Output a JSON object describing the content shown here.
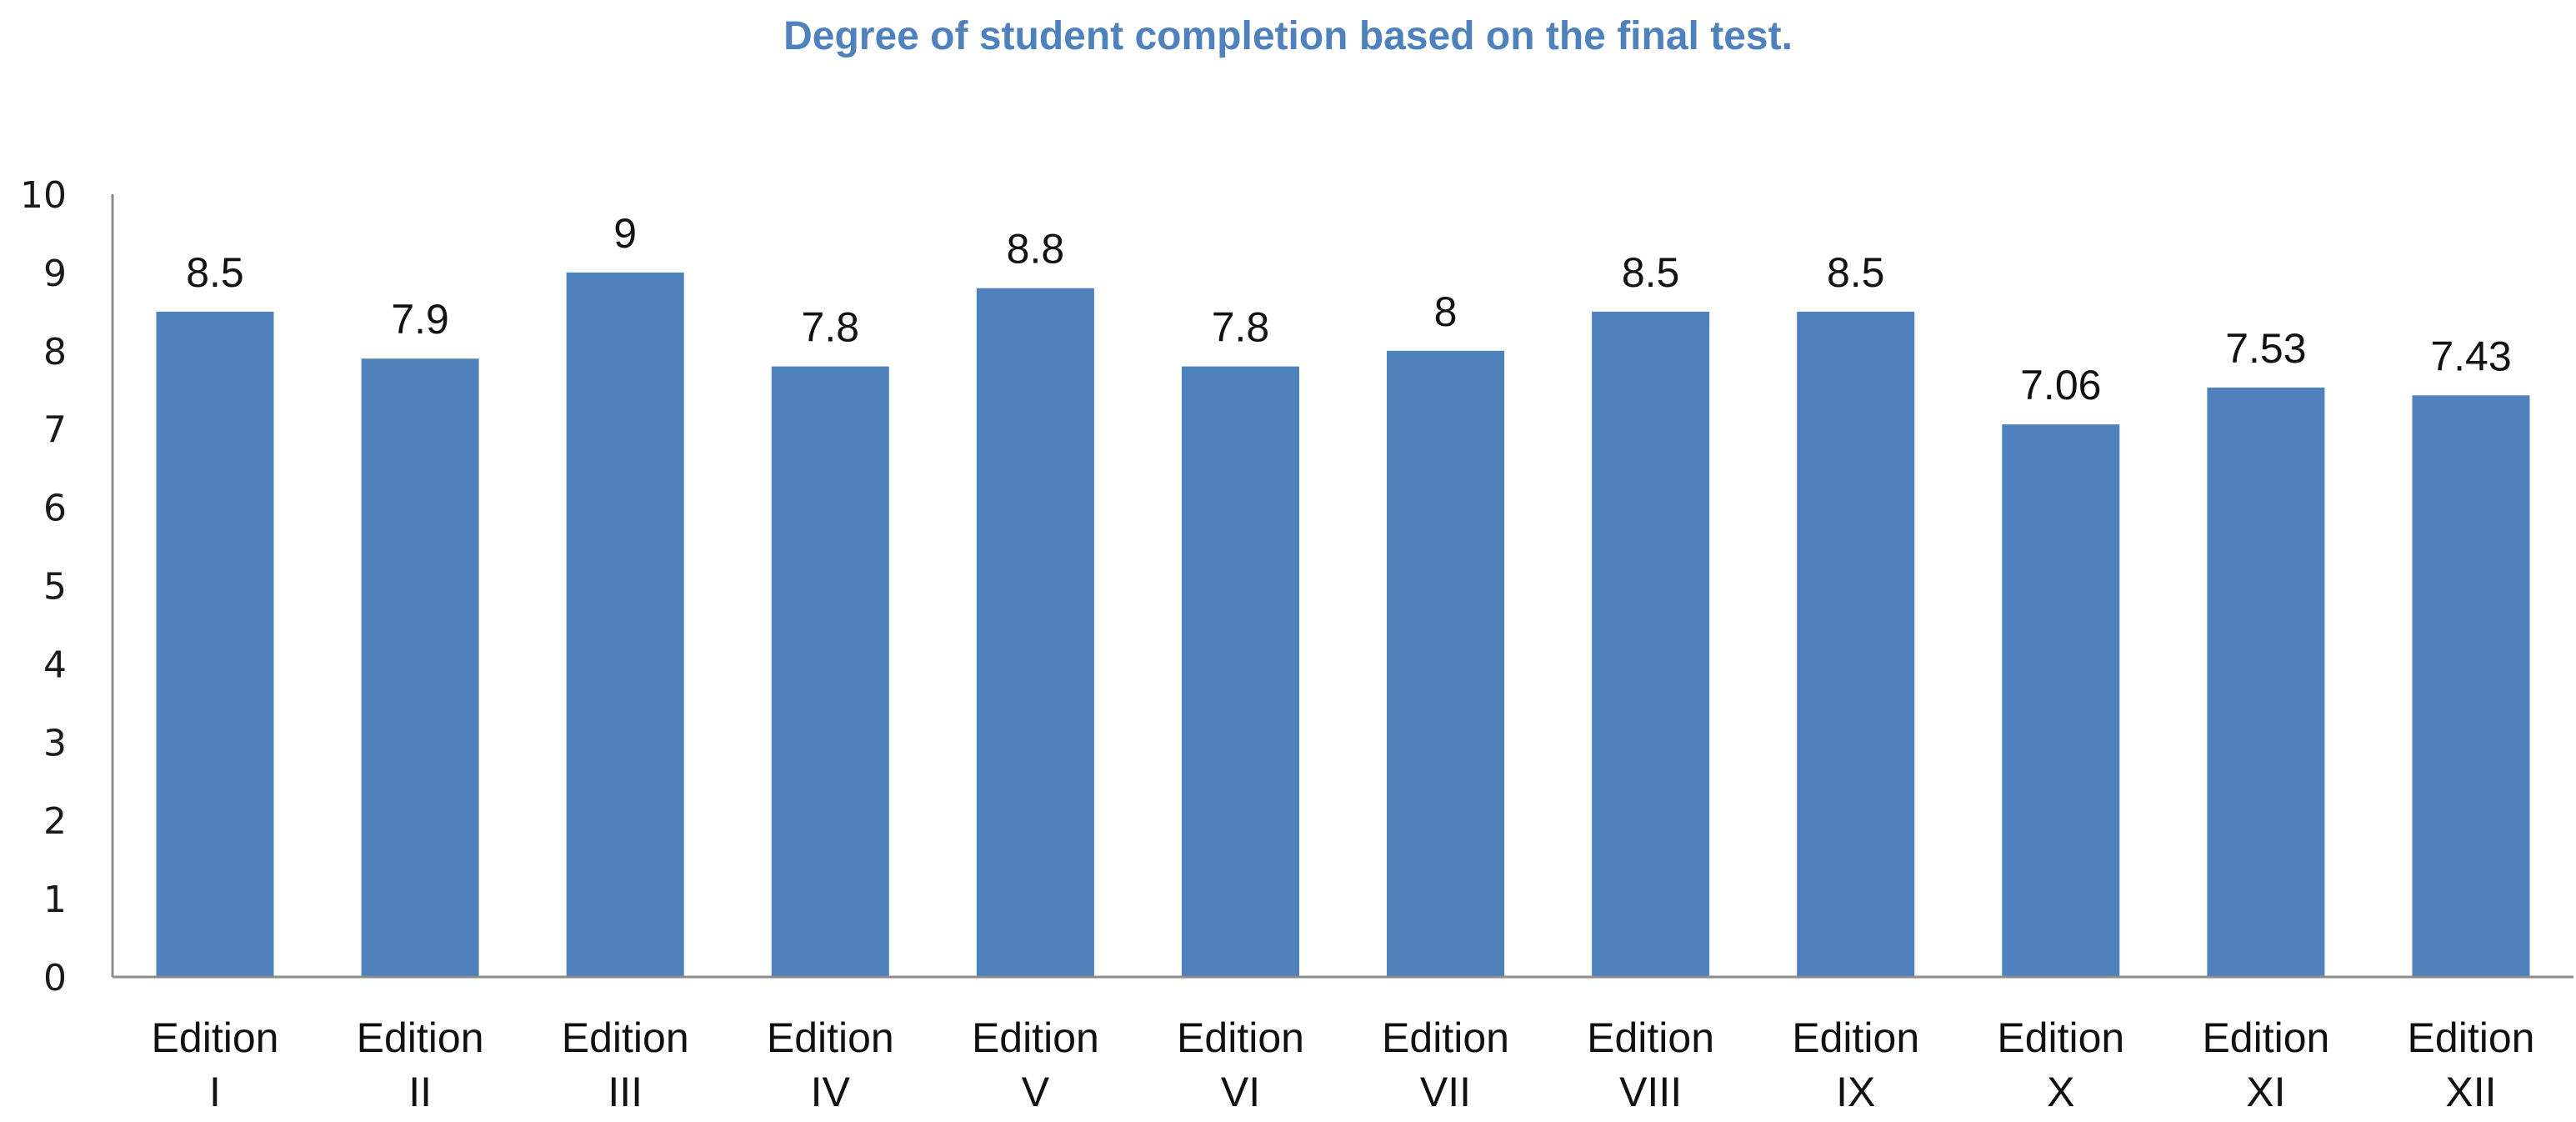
{
  "chart_data": {
    "type": "bar",
    "title": "Degree of student completion based on the final test.",
    "categories": [
      [
        "Edition",
        "I"
      ],
      [
        "Edition",
        "II"
      ],
      [
        "Edition",
        "III"
      ],
      [
        "Edition",
        "IV"
      ],
      [
        "Edition",
        "V"
      ],
      [
        "Edition",
        "VI"
      ],
      [
        "Edition",
        "VII"
      ],
      [
        "Edition",
        "VIII"
      ],
      [
        "Edition",
        "IX"
      ],
      [
        "Edition",
        "X"
      ],
      [
        "Edition",
        "XI"
      ],
      [
        "Edition",
        "XII"
      ]
    ],
    "values": [
      8.5,
      7.9,
      9,
      7.8,
      8.8,
      7.8,
      8,
      8.5,
      8.5,
      7.06,
      7.53,
      7.43
    ],
    "data_labels": [
      "8.5",
      "7.9",
      "9",
      "7.8",
      "8.8",
      "7.8",
      "8",
      "8.5",
      "8.5",
      "7.06",
      "7.53",
      "7.43"
    ],
    "xlabel": "",
    "ylabel": "",
    "ylim": [
      0,
      10
    ],
    "yticks": [
      "0",
      "1",
      "2",
      "3",
      "4",
      "5",
      "6",
      "7",
      "8",
      "9",
      "10"
    ],
    "grid": false,
    "legend": "none",
    "colors": {
      "bar": "#4f81bd",
      "title": "#4f81bd",
      "axis": "#8c8c8c"
    }
  }
}
